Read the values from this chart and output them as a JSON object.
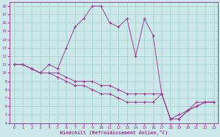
{
  "xlabel": "Windchill (Refroidissement éolien,°C)",
  "background_color": "#cce8e8",
  "grid_color": "#99cccc",
  "line_color": "#993399",
  "x_hours": [
    0,
    1,
    2,
    3,
    4,
    5,
    6,
    7,
    8,
    9,
    10,
    11,
    12,
    13,
    14,
    15,
    16,
    17,
    18,
    19,
    20,
    21,
    22,
    23
  ],
  "line1_y": [
    11,
    11,
    10.5,
    10,
    11,
    10.5,
    13,
    15.5,
    16.5,
    18,
    18,
    16,
    15.5,
    16.5,
    12,
    16.5,
    14.5,
    7.5,
    4.5,
    4.5,
    5.5,
    6,
    6.5,
    6.5
  ],
  "line2_y": [
    11,
    11,
    10.5,
    10,
    10,
    10,
    9.5,
    9,
    9,
    9,
    8.5,
    8.5,
    8,
    7.5,
    7.5,
    7.5,
    7.5,
    7.5,
    4.5,
    5,
    5.5,
    6,
    6.5,
    6.5
  ],
  "line3_y": [
    11,
    11,
    10.5,
    10,
    10,
    9.5,
    9,
    8.5,
    8.5,
    8,
    7.5,
    7.5,
    7,
    6.5,
    6.5,
    6.5,
    6.5,
    7.5,
    4.5,
    4.5,
    5.5,
    6.5,
    6.5,
    6.5
  ],
  "ylim": [
    4,
    18.5
  ],
  "xlim": [
    -0.5,
    23.5
  ],
  "yticks": [
    4,
    5,
    6,
    7,
    8,
    9,
    10,
    11,
    12,
    13,
    14,
    15,
    16,
    17,
    18
  ],
  "xticks": [
    0,
    1,
    2,
    3,
    4,
    5,
    6,
    7,
    8,
    9,
    10,
    11,
    12,
    13,
    14,
    15,
    16,
    17,
    18,
    19,
    20,
    21,
    22,
    23
  ]
}
